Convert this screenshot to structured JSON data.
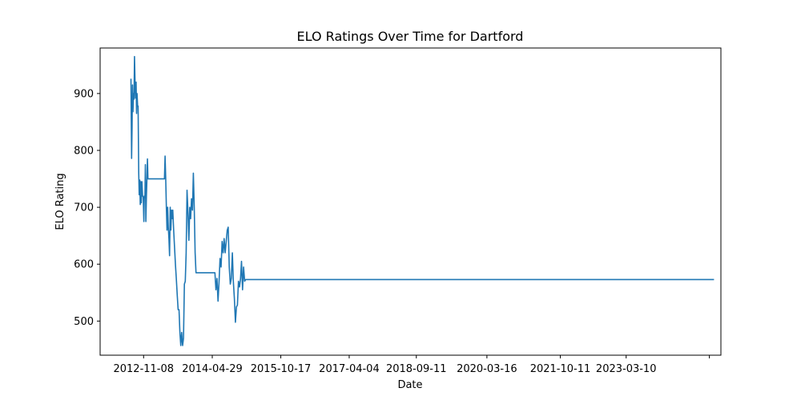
{
  "chart_data": {
    "type": "line",
    "title": "ELO Ratings Over Time for Dartford",
    "xlabel": "Date",
    "ylabel": "ELO Rating",
    "xlim": [
      "2011-12-04",
      "2025-03-20"
    ],
    "ylim": [
      440,
      980
    ],
    "x_ticks": [
      {
        "label": "2012-11-08",
        "date": "2012-11-08"
      },
      {
        "label": "2014-04-29",
        "date": "2014-04-29"
      },
      {
        "label": "2015-10-17",
        "date": "2015-10-17"
      },
      {
        "label": "2017-04-04",
        "date": "2017-04-04"
      },
      {
        "label": "2018-09-11",
        "date": "2018-09-11"
      },
      {
        "label": "2020-03-16",
        "date": "2020-03-16"
      },
      {
        "label": "2021-10-11",
        "date": "2021-10-11"
      },
      {
        "label": "2023-03-10",
        "date": "2023-03-10"
      },
      {
        "label": "",
        "date": "2024-12-20"
      }
    ],
    "y_ticks": [
      500,
      600,
      700,
      800,
      900
    ],
    "grid": false,
    "color": "#1f77b4",
    "series": [
      {
        "points": [
          [
            "2012-08-01",
            926
          ],
          [
            "2012-08-03",
            870
          ],
          [
            "2012-08-06",
            786
          ],
          [
            "2012-08-10",
            842
          ],
          [
            "2012-08-13",
            915
          ],
          [
            "2012-08-17",
            868
          ],
          [
            "2012-08-21",
            900
          ],
          [
            "2012-08-25",
            890
          ],
          [
            "2012-08-29",
            965
          ],
          [
            "2012-09-02",
            920
          ],
          [
            "2012-09-06",
            892
          ],
          [
            "2012-09-10",
            920
          ],
          [
            "2012-09-14",
            865
          ],
          [
            "2012-09-18",
            900
          ],
          [
            "2012-09-22",
            878
          ],
          [
            "2012-09-26",
            878
          ],
          [
            "2012-10-01",
            760
          ],
          [
            "2012-10-05",
            722
          ],
          [
            "2012-10-09",
            748
          ],
          [
            "2012-10-13",
            705
          ],
          [
            "2012-10-17",
            745
          ],
          [
            "2012-10-21",
            708
          ],
          [
            "2012-10-26",
            745
          ],
          [
            "2012-10-31",
            720
          ],
          [
            "2012-11-05",
            718
          ],
          [
            "2012-11-10",
            675
          ],
          [
            "2012-11-14",
            720
          ],
          [
            "2012-11-18",
            717
          ],
          [
            "2012-11-22",
            775
          ],
          [
            "2012-11-26",
            675
          ],
          [
            "2012-11-30",
            720
          ],
          [
            "2012-12-04",
            748
          ],
          [
            "2012-12-08",
            785
          ],
          [
            "2012-12-12",
            750
          ],
          [
            "2013-01-01",
            750
          ],
          [
            "2013-02-01",
            750
          ],
          [
            "2013-03-01",
            750
          ],
          [
            "2013-04-01",
            750
          ],
          [
            "2013-04-20",
            750
          ],
          [
            "2013-04-25",
            790
          ],
          [
            "2013-04-30",
            750
          ],
          [
            "2013-05-05",
            700
          ],
          [
            "2013-05-10",
            660
          ],
          [
            "2013-05-15",
            700
          ],
          [
            "2013-05-20",
            665
          ],
          [
            "2013-05-25",
            645
          ],
          [
            "2013-05-30",
            615
          ],
          [
            "2013-06-04",
            700
          ],
          [
            "2013-06-09",
            660
          ],
          [
            "2013-06-14",
            695
          ],
          [
            "2013-06-19",
            680
          ],
          [
            "2013-06-24",
            695
          ],
          [
            "2013-07-01",
            660
          ],
          [
            "2013-07-08",
            630
          ],
          [
            "2013-07-15",
            600
          ],
          [
            "2013-07-22",
            575
          ],
          [
            "2013-07-29",
            545
          ],
          [
            "2013-08-05",
            520
          ],
          [
            "2013-08-12",
            520
          ],
          [
            "2013-08-19",
            480
          ],
          [
            "2013-08-26",
            457
          ],
          [
            "2013-09-02",
            480
          ],
          [
            "2013-09-09",
            457
          ],
          [
            "2013-09-16",
            470
          ],
          [
            "2013-09-23",
            565
          ],
          [
            "2013-09-30",
            570
          ],
          [
            "2013-10-07",
            620
          ],
          [
            "2013-10-14",
            730
          ],
          [
            "2013-10-21",
            690
          ],
          [
            "2013-10-28",
            642
          ],
          [
            "2013-11-04",
            700
          ],
          [
            "2013-11-11",
            680
          ],
          [
            "2013-11-18",
            715
          ],
          [
            "2013-11-25",
            695
          ],
          [
            "2013-12-02",
            760
          ],
          [
            "2013-12-09",
            700
          ],
          [
            "2013-12-16",
            620
          ],
          [
            "2013-12-23",
            585
          ],
          [
            "2014-02-01",
            585
          ],
          [
            "2014-04-01",
            585
          ],
          [
            "2014-05-20",
            585
          ],
          [
            "2014-05-28",
            555
          ],
          [
            "2014-06-05",
            575
          ],
          [
            "2014-06-13",
            535
          ],
          [
            "2014-06-21",
            570
          ],
          [
            "2014-06-29",
            610
          ],
          [
            "2014-07-07",
            595
          ],
          [
            "2014-07-15",
            640
          ],
          [
            "2014-07-23",
            620
          ],
          [
            "2014-07-31",
            645
          ],
          [
            "2014-08-08",
            620
          ],
          [
            "2014-08-16",
            640
          ],
          [
            "2014-08-24",
            660
          ],
          [
            "2014-09-01",
            665
          ],
          [
            "2014-09-09",
            595
          ],
          [
            "2014-09-17",
            565
          ],
          [
            "2014-09-25",
            575
          ],
          [
            "2014-10-03",
            620
          ],
          [
            "2014-10-11",
            570
          ],
          [
            "2014-10-19",
            540
          ],
          [
            "2014-10-27",
            498
          ],
          [
            "2014-11-04",
            525
          ],
          [
            "2014-11-12",
            528
          ],
          [
            "2014-11-20",
            570
          ],
          [
            "2014-11-28",
            560
          ],
          [
            "2014-12-06",
            575
          ],
          [
            "2014-12-14",
            605
          ],
          [
            "2014-12-22",
            555
          ],
          [
            "2014-12-30",
            595
          ],
          [
            "2015-01-07",
            570
          ],
          [
            "2015-01-15",
            573
          ],
          [
            "2025-01-25",
            573
          ]
        ]
      }
    ]
  }
}
